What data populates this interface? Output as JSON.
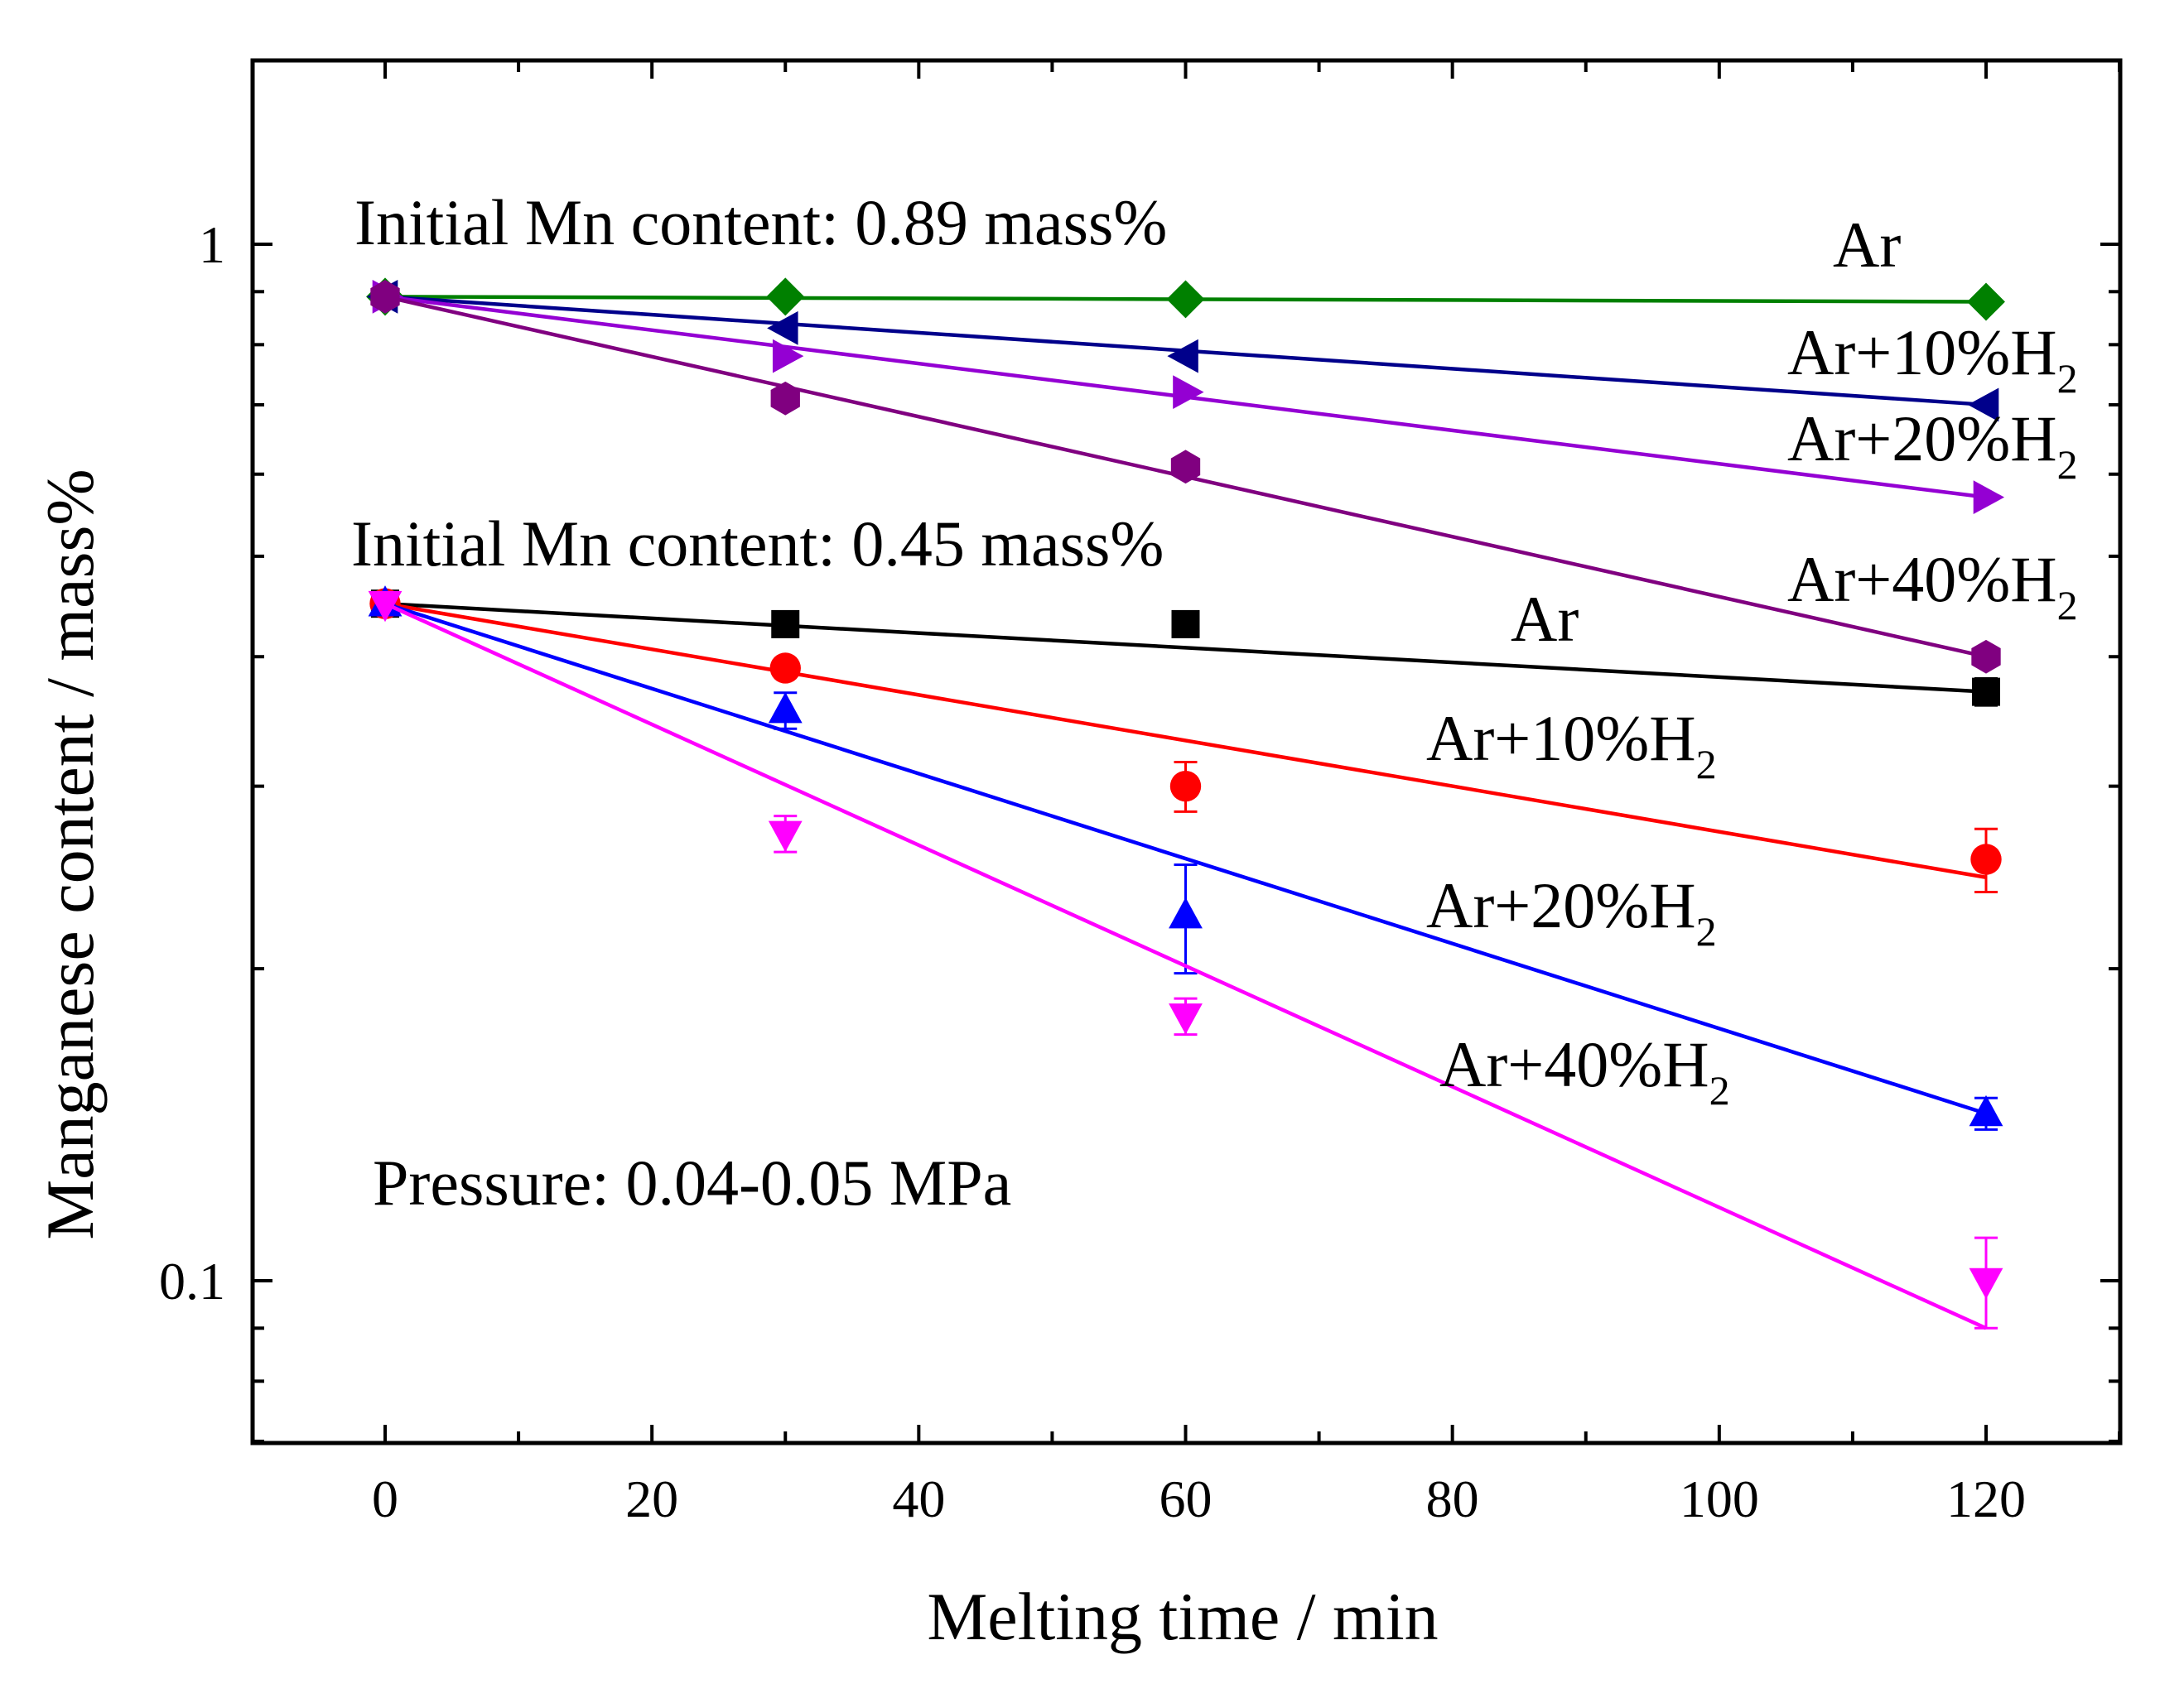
{
  "chart_data": {
    "type": "scatter",
    "xlabel": "Melting time / min",
    "ylabel": "Manganese content / mass%",
    "xlim": [
      -10,
      130
    ],
    "ylim": [
      0.063,
      1.7
    ],
    "yscale": "log",
    "grid": false,
    "x_ticks": [
      "0",
      "20",
      "40",
      "60",
      "80",
      "100",
      "120"
    ],
    "y_ticks": [
      "1",
      "0.1"
    ],
    "annotations": {
      "initial_089": "Initial Mn content: 0.89 mass%",
      "initial_045": "Initial Mn content: 0.45 mass%",
      "pressure": "Pressure: 0.04-0.05 MPa"
    },
    "groups": [
      {
        "initial": 0.89,
        "series": [
          {
            "label": "Ar",
            "label_sub": "",
            "color": "#008000",
            "marker": "diamond",
            "x": [
              0,
              30,
              60,
              120
            ],
            "y": [
              0.89,
              0.89,
              0.885,
              0.88
            ],
            "fit": [
              0.89,
              0.88
            ]
          },
          {
            "label": "Ar+10%H",
            "label_sub": "2",
            "color": "#00008b",
            "marker": "triangle-left",
            "x": [
              0,
              30,
              60,
              120
            ],
            "y": [
              0.89,
              0.83,
              0.78,
              0.7
            ],
            "fit": [
              0.89,
              0.7
            ]
          },
          {
            "label": "Ar+20%H",
            "label_sub": "2",
            "color": "#9400d3",
            "marker": "triangle-right",
            "x": [
              0,
              30,
              60,
              120
            ],
            "y": [
              0.89,
              0.78,
              0.72,
              0.57
            ],
            "fit": [
              0.89,
              0.57
            ]
          },
          {
            "label": "Ar+40%H",
            "label_sub": "2",
            "color": "#800080",
            "marker": "hexagon",
            "x": [
              0,
              30,
              60,
              120
            ],
            "y": [
              0.89,
              0.71,
              0.61,
              0.4
            ],
            "fit": [
              0.89,
              0.4
            ]
          }
        ]
      },
      {
        "initial": 0.45,
        "series": [
          {
            "label": "Ar",
            "label_sub": "",
            "color": "#000000",
            "marker": "square",
            "x": [
              0,
              30,
              60,
              120
            ],
            "y": [
              0.45,
              0.43,
              0.43,
              0.37
            ],
            "fit": [
              0.45,
              0.37
            ]
          },
          {
            "label": "Ar+10%H",
            "label_sub": "2",
            "color": "#ff0000",
            "marker": "circle",
            "x": [
              0,
              30,
              60,
              120
            ],
            "y": [
              0.45,
              0.39,
              0.3,
              0.255
            ],
            "fit": [
              0.45,
              0.245
            ]
          },
          {
            "label": "Ar+20%H",
            "label_sub": "2",
            "color": "#0000ff",
            "marker": "triangle-up",
            "x": [
              0,
              30,
              60,
              120
            ],
            "y": [
              0.45,
              0.355,
              0.225,
              0.145
            ],
            "fit": [
              0.45,
              0.145
            ]
          },
          {
            "label": "Ar+40%H",
            "label_sub": "2",
            "color": "#ff00ff",
            "marker": "triangle-down",
            "x": [
              0,
              30,
              60,
              120
            ],
            "y": [
              0.45,
              0.27,
              0.18,
              0.1
            ],
            "fit": [
              0.45,
              0.09
            ]
          }
        ]
      }
    ]
  }
}
